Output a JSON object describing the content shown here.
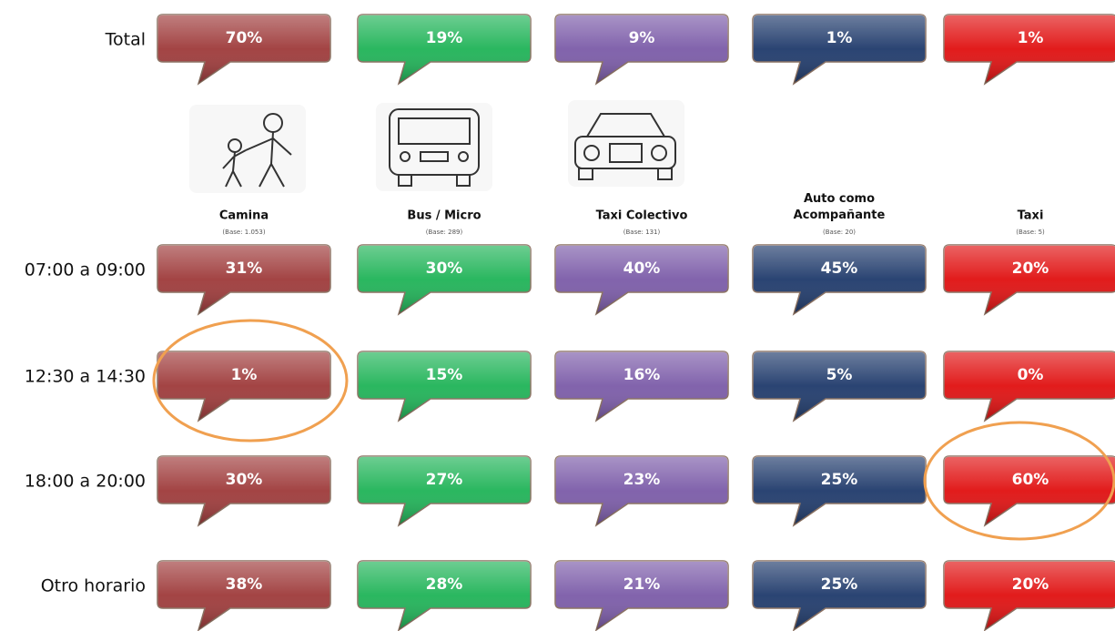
{
  "columns": [
    {
      "name": "Camina",
      "base": "(Base: 1.053)",
      "color": "#9e3a3a"
    },
    {
      "name": "Bus / Micro",
      "base": "(Base: 289)",
      "color": "#1fb357"
    },
    {
      "name": "Taxi Colectivo",
      "base": "(Base: 131)",
      "color": "#7b5ba8"
    },
    {
      "name": "Auto como Acompañante",
      "base": "(Base: 20)",
      "color": "#1f3a6b"
    },
    {
      "name": "Taxi",
      "base": "(Base: 5)",
      "color": "#e01010"
    }
  ],
  "total": {
    "label": "Total",
    "cells": [
      "70%",
      "19%",
      "9%",
      "1%",
      "1%"
    ]
  },
  "rows": [
    {
      "label": "07:00 a 09:00",
      "cells": [
        "31%",
        "30%",
        "40%",
        "45%",
        "20%"
      ]
    },
    {
      "label": "12:30 a 14:30",
      "cells": [
        "1%",
        "15%",
        "16%",
        "5%",
        "0%"
      ]
    },
    {
      "label": "18:00 a 20:00",
      "cells": [
        "30%",
        "27%",
        "23%",
        "25%",
        "60%"
      ]
    },
    {
      "label": "Otro horario",
      "cells": [
        "38%",
        "28%",
        "21%",
        "25%",
        "20%"
      ]
    }
  ]
}
